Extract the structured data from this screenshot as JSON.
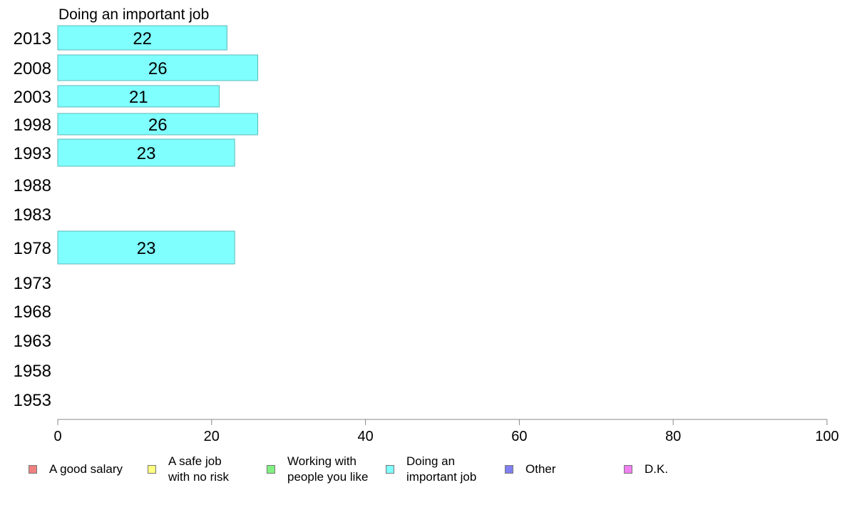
{
  "chart_data": {
    "type": "bar",
    "orientation": "horizontal",
    "title": "Doing an important job",
    "categories": [
      "2013",
      "2008",
      "2003",
      "1998",
      "1993",
      "1988",
      "1983",
      "1978",
      "1973",
      "1968",
      "1963",
      "1958",
      "1953"
    ],
    "values": [
      22,
      26,
      21,
      26,
      23,
      null,
      null,
      23,
      null,
      null,
      null,
      null,
      null
    ],
    "xlim": [
      0,
      100
    ],
    "xticks": [
      0,
      20,
      40,
      60,
      80,
      100
    ],
    "bar_color": "#80ffff",
    "bar_stroke": "#5cb8b8",
    "legend_position": "bottom",
    "legend": [
      {
        "label": "A good salary",
        "color": "#f08080"
      },
      {
        "label": "A safe job\nwith no risk",
        "color": "#ffff80"
      },
      {
        "label": "Working with\npeople you like",
        "color": "#80f080"
      },
      {
        "label": "Doing an\nimportant job",
        "color": "#80ffff"
      },
      {
        "label": "Other",
        "color": "#8080f0"
      },
      {
        "label": "D.K.",
        "color": "#f080f0"
      }
    ]
  }
}
